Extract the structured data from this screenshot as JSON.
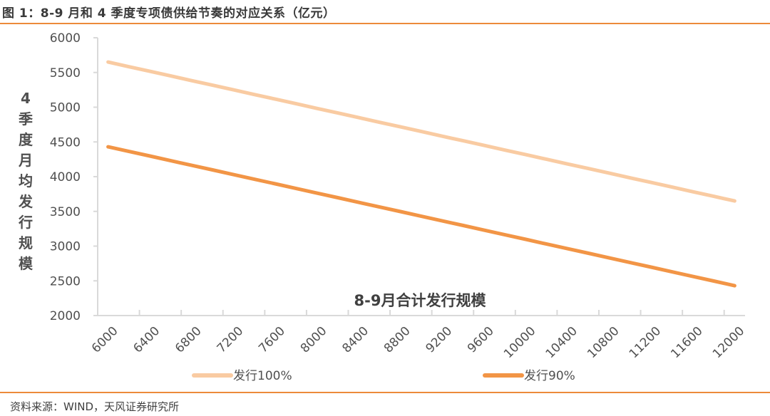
{
  "header": {
    "title": "图 1：8-9 月和 4 季度专项债供给节奏的对应关系（亿元）"
  },
  "footer": {
    "source": "资料来源：WIND，天风证券研究所"
  },
  "colors": {
    "accent_rule": "#ec8a3a",
    "series_100": "#f9cba2",
    "series_90": "#f29546",
    "axis": "#d9d9d9"
  },
  "chart_data": {
    "type": "line",
    "title": "图 1：8-9 月和 4 季度专项债供给节奏的对应关系（亿元）",
    "xlabel": "8-9月合计发行规模",
    "ylabel": "4季度月均发行规模",
    "ylabel_chars": [
      "4",
      "季",
      "度",
      "月",
      "均",
      "发",
      "行",
      "规",
      "模"
    ],
    "ylim": [
      2000,
      6000
    ],
    "yticks": [
      2000,
      2500,
      3000,
      3500,
      4000,
      4500,
      5000,
      5500,
      6000
    ],
    "x": [
      6000,
      6200,
      6400,
      6600,
      6800,
      7000,
      7200,
      7400,
      7600,
      7800,
      8000,
      8200,
      8400,
      8600,
      8800,
      9000,
      9200,
      9400,
      9600,
      9800,
      10000,
      10200,
      10400,
      10600,
      10800,
      11000,
      11200,
      11400,
      11600,
      11800,
      12000
    ],
    "xtick_labels": [
      "6000",
      "6400",
      "6800",
      "7200",
      "7600",
      "8000",
      "8400",
      "8800",
      "9200",
      "9600",
      "10000",
      "10400",
      "10800",
      "11200",
      "11600",
      "12000"
    ],
    "grid": false,
    "legend_position": "bottom",
    "series": [
      {
        "name": "发行100%",
        "values": [
          5650,
          5583,
          5517,
          5450,
          5383,
          5317,
          5250,
          5183,
          5117,
          5050,
          4983,
          4917,
          4850,
          4783,
          4717,
          4650,
          4583,
          4517,
          4450,
          4383,
          4317,
          4250,
          4183,
          4117,
          4050,
          3983,
          3917,
          3850,
          3783,
          3717,
          3650
        ]
      },
      {
        "name": "发行90%",
        "values": [
          4430,
          4363,
          4297,
          4230,
          4163,
          4097,
          4030,
          3963,
          3897,
          3830,
          3763,
          3697,
          3630,
          3563,
          3497,
          3430,
          3363,
          3297,
          3230,
          3163,
          3097,
          3030,
          2963,
          2897,
          2830,
          2763,
          2697,
          2630,
          2563,
          2497,
          2430
        ]
      }
    ]
  }
}
